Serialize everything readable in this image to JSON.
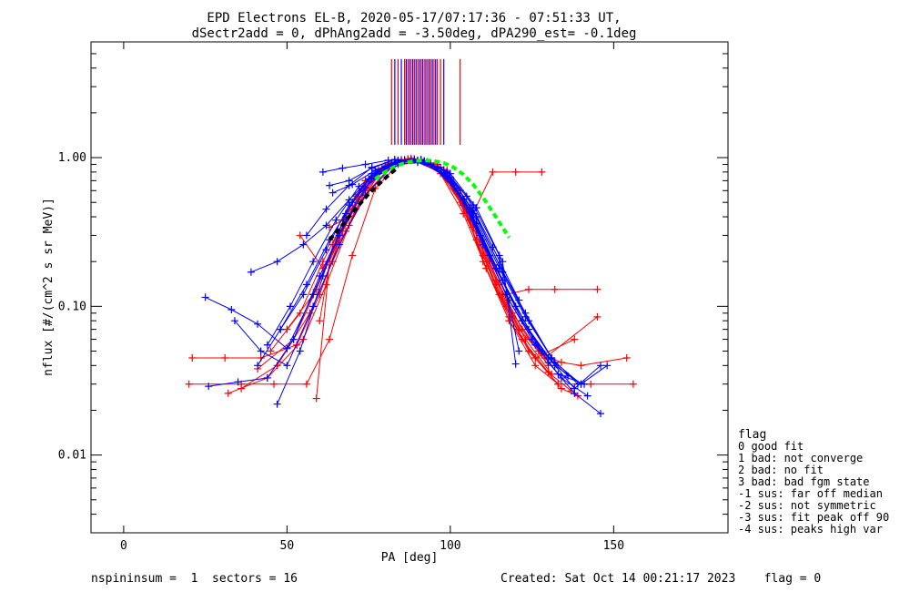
{
  "chart_data": {
    "type": "scatter",
    "title": "EPD Electrons EL-B, 2020-05-17/07:17:36 - 07:51:33 UT,",
    "subtitle": "dSectr2add = 0, dPhAng2add = -3.50deg, dPA290_est=  -0.1deg",
    "xlabel": "PA [deg]",
    "ylabel": "nflux [#/(cm^2 s sr MeV)]",
    "xlim": [
      -10,
      185
    ],
    "ylim": [
      0.003,
      6.0
    ],
    "yscale": "log",
    "x_ticks": [
      0,
      50,
      100,
      150
    ],
    "x_tick_labels": [
      "0",
      "50",
      "100",
      "150"
    ],
    "y_ticks": [
      0.01,
      0.1,
      1.0
    ],
    "y_tick_labels": [
      "0.01",
      "0.10",
      "1.00"
    ],
    "grid": false,
    "colors": {
      "red": "#ff0000",
      "blue": "#0000ff",
      "green": "#00ff00",
      "black": "#000000"
    },
    "series": [
      {
        "color": "red",
        "curves": [
          {
            "x": [
              20,
              36,
              46,
              56,
              63,
              70,
              77,
              84,
              92,
              99,
              104,
              110,
              118,
              126,
              133,
              143,
              156
            ],
            "y": [
              0.03,
              0.03,
              0.03,
              0.03,
              0.06,
              0.22,
              0.62,
              0.9,
              0.93,
              0.82,
              0.48,
              0.2,
              0.08,
              0.04,
              0.03,
              0.03,
              0.03
            ]
          },
          {
            "x": [
              21,
              31,
              42,
              53,
              60,
              67,
              74,
              82,
              90,
              98,
              106,
              114,
              121,
              128,
              134,
              140,
              154
            ],
            "y": [
              0.045,
              0.045,
              0.045,
              0.055,
              0.12,
              0.32,
              0.7,
              0.92,
              0.95,
              0.78,
              0.38,
              0.15,
              0.07,
              0.048,
              0.042,
              0.04,
              0.045
            ]
          },
          {
            "x": [
              32,
              44,
              55,
              62,
              69,
              76,
              84,
              91,
              98,
              105,
              111,
              118,
              126,
              134,
              139
            ],
            "y": [
              0.026,
              0.033,
              0.06,
              0.14,
              0.35,
              0.74,
              0.95,
              0.97,
              0.83,
              0.42,
              0.18,
              0.08,
              0.045,
              0.028,
              0.025
            ]
          },
          {
            "x": [
              36,
              47,
              57,
              64,
              71,
              79,
              87,
              94,
              101,
              108,
              115,
              122,
              130,
              137
            ],
            "y": [
              0.028,
              0.04,
              0.09,
              0.2,
              0.45,
              0.82,
              0.98,
              0.92,
              0.62,
              0.28,
              0.12,
              0.06,
              0.036,
              0.027
            ]
          },
          {
            "x": [
              41,
              52,
              59,
              66,
              74,
              81,
              88,
              96,
              103,
              110,
              117,
              124,
              133
            ],
            "y": [
              0.038,
              0.06,
              0.13,
              0.3,
              0.62,
              0.9,
              0.97,
              0.85,
              0.5,
              0.22,
              0.1,
              0.05,
              0.03
            ]
          },
          {
            "x": [
              45,
              54,
              61,
              68,
              76,
              83,
              90,
              97,
              104,
              111,
              118,
              126,
              138
            ],
            "y": [
              0.05,
              0.09,
              0.2,
              0.4,
              0.72,
              0.93,
              0.96,
              0.78,
              0.42,
              0.18,
              0.085,
              0.045,
              0.06
            ]
          },
          {
            "x": [
              50,
              58,
              65,
              72,
              79,
              86,
              93,
              100,
              107,
              114,
              121,
              129,
              145
            ],
            "y": [
              0.07,
              0.12,
              0.26,
              0.52,
              0.82,
              0.97,
              0.94,
              0.7,
              0.34,
              0.14,
              0.07,
              0.045,
              0.085
            ]
          },
          {
            "x": [
              54,
              61,
              68,
              75,
              82,
              89,
              96,
              103,
              110,
              117,
              124,
              132,
              145
            ],
            "y": [
              0.3,
              0.18,
              0.32,
              0.6,
              0.88,
              0.98,
              0.9,
              0.6,
              0.28,
              0.12,
              0.13,
              0.13,
              0.13
            ]
          },
          {
            "x": [
              59,
              63,
              70,
              77,
              84,
              91,
              98,
              105,
              112,
              119,
              127
            ],
            "y": [
              0.024,
              0.2,
              0.45,
              0.76,
              0.95,
              0.97,
              0.82,
              0.46,
              0.2,
              0.09,
              0.05
            ]
          },
          {
            "x": [
              60,
              64,
              71,
              78,
              85,
              92,
              99,
              106,
              113,
              120,
              128
            ],
            "y": [
              0.08,
              0.26,
              0.55,
              0.84,
              0.97,
              0.94,
              0.72,
              0.38,
              0.8,
              0.8,
              0.8
            ]
          },
          {
            "x": [
              62,
              66,
              73,
              80,
              87,
              94,
              101,
              108,
              115,
              122,
              130
            ],
            "y": [
              0.19,
              0.3,
              0.62,
              0.88,
              0.98,
              0.92,
              0.66,
              0.32,
              0.14,
              0.07,
              0.04
            ]
          },
          {
            "x": [
              63,
              67,
              74,
              81,
              88,
              95,
              102,
              109,
              116,
              123,
              131
            ],
            "y": [
              0.34,
              0.38,
              0.7,
              0.92,
              0.99,
              0.88,
              0.58,
              0.27,
              0.12,
              0.06,
              0.035
            ]
          }
        ]
      },
      {
        "color": "blue",
        "curves": [
          {
            "x": [
              25,
              33,
              41,
              50,
              58,
              66,
              74,
              82,
              90,
              98,
              106,
              114,
              122,
              130,
              138,
              146
            ],
            "y": [
              0.115,
              0.095,
              0.076,
              0.052,
              0.12,
              0.3,
              0.63,
              0.9,
              0.93,
              0.78,
              0.43,
              0.18,
              0.08,
              0.042,
              0.026,
              0.019
            ]
          },
          {
            "x": [
              26,
              35,
              44,
              52,
              60,
              68,
              76,
              84,
              92,
              100,
              108,
              116,
              124,
              132,
              140,
              148
            ],
            "y": [
              0.029,
              0.031,
              0.033,
              0.06,
              0.16,
              0.38,
              0.72,
              0.94,
              0.94,
              0.72,
              0.36,
              0.15,
              0.07,
              0.04,
              0.03,
              0.04
            ]
          },
          {
            "x": [
              34,
              42,
              50,
              58,
              66,
              74,
              82,
              90,
              98,
              106,
              114,
              122,
              130,
              138,
              146
            ],
            "y": [
              0.08,
              0.05,
              0.04,
              0.1,
              0.26,
              0.56,
              0.86,
              0.96,
              0.82,
              0.45,
              0.18,
              0.08,
              0.045,
              0.028,
              0.04
            ]
          },
          {
            "x": [
              39,
              47,
              55,
              62,
              69,
              77,
              85,
              93,
              101,
              109,
              117,
              125,
              133,
              141
            ],
            "y": [
              0.17,
              0.2,
              0.26,
              0.35,
              0.52,
              0.78,
              0.95,
              0.93,
              0.65,
              0.3,
              0.12,
              0.06,
              0.035,
              0.03
            ]
          },
          {
            "x": [
              41,
              48,
              56,
              63,
              70,
              78,
              86,
              94,
              102,
              110,
              118,
              126,
              134,
              142
            ],
            "y": [
              0.04,
              0.07,
              0.14,
              0.28,
              0.5,
              0.8,
              0.96,
              0.9,
              0.6,
              0.26,
              0.11,
              0.055,
              0.033,
              0.025
            ]
          },
          {
            "x": [
              44,
              51,
              58,
              65,
              72,
              80,
              88,
              96,
              104,
              112,
              120,
              128,
              136
            ],
            "y": [
              0.055,
              0.1,
              0.2,
              0.38,
              0.64,
              0.88,
              0.97,
              0.85,
              0.52,
              0.22,
              0.1,
              0.05,
              0.034
            ]
          },
          {
            "x": [
              47,
              54,
              61,
              68,
              75,
              83,
              91,
              99,
              107,
              115,
              123,
              131,
              139
            ],
            "y": [
              0.022,
              0.05,
              0.16,
              0.42,
              0.72,
              0.93,
              0.97,
              0.8,
              0.44,
              0.19,
              0.09,
              0.045,
              0.03
            ]
          },
          {
            "x": [
              48,
              55,
              62,
              69,
              76,
              84,
              92,
              100,
              108,
              116,
              124,
              132,
              140
            ],
            "y": [
              0.07,
              0.12,
              0.24,
              0.48,
              0.78,
              0.95,
              0.95,
              0.74,
              0.4,
              0.17,
              0.08,
              0.042,
              0.03
            ]
          },
          {
            "x": [
              56,
              62,
              69,
              76,
              83,
              91,
              99,
              107,
              115,
              123,
              131
            ],
            "y": [
              0.3,
              0.45,
              0.65,
              0.86,
              0.97,
              0.96,
              0.76,
              0.42,
              0.18,
              0.085,
              0.045
            ]
          },
          {
            "x": [
              61,
              67,
              74,
              81,
              89,
              97,
              105,
              113,
              121
            ],
            "y": [
              0.8,
              0.85,
              0.9,
              0.96,
              0.97,
              0.86,
              0.55,
              0.25,
              0.11
            ]
          },
          {
            "x": [
              63,
              69,
              76,
              83,
              91,
              99,
              107,
              115,
              121
            ],
            "y": [
              0.65,
              0.7,
              0.85,
              0.97,
              0.96,
              0.8,
              0.48,
              0.22,
              0.05
            ]
          },
          {
            "x": [
              64,
              70,
              77,
              84,
              92,
              100,
              108,
              116,
              120
            ],
            "y": [
              0.58,
              0.66,
              0.82,
              0.96,
              0.95,
              0.78,
              0.46,
              0.2,
              0.041
            ]
          }
        ]
      },
      {
        "color": "green",
        "style": "dashed",
        "x": [
          77,
          80,
          83,
          86,
          89,
          92,
          95,
          98,
          101,
          104,
          107,
          110,
          113,
          116,
          118
        ],
        "y": [
          0.72,
          0.8,
          0.87,
          0.92,
          0.95,
          0.96,
          0.95,
          0.92,
          0.86,
          0.77,
          0.66,
          0.54,
          0.43,
          0.34,
          0.29
        ]
      },
      {
        "color": "black",
        "style": "dashed",
        "x": [
          63,
          66,
          69,
          72,
          75,
          78,
          81,
          84
        ],
        "y": [
          0.28,
          0.33,
          0.4,
          0.48,
          0.57,
          0.66,
          0.76,
          0.86
        ]
      }
    ],
    "vertical_marks": [
      {
        "color": "red",
        "x": [
          82,
          84,
          86,
          87,
          88,
          89,
          90,
          91,
          92,
          93,
          94,
          95,
          96,
          97,
          103
        ]
      },
      {
        "color": "blue",
        "x": [
          83,
          85,
          86.5,
          87.5,
          88.5,
          89.5,
          90.5,
          91.5,
          92.5,
          93.5,
          94.5,
          95.5,
          98
        ]
      }
    ],
    "legend": {
      "placement": "right",
      "title": "flag",
      "entries": [
        " 0 good fit",
        " 1 bad: not converge",
        " 2 bad: no fit",
        " 3 bad: bad fgm state",
        "-1 sus: far off median",
        "-2 sus: not symmetric",
        "-3 sus: fit peak off 90",
        "-4 sus: peaks high var"
      ]
    },
    "footer": {
      "left": "nspininsum =  1  sectors = 16",
      "right": "Created: Sat Oct 14 00:21:17 2023    flag = 0"
    }
  }
}
